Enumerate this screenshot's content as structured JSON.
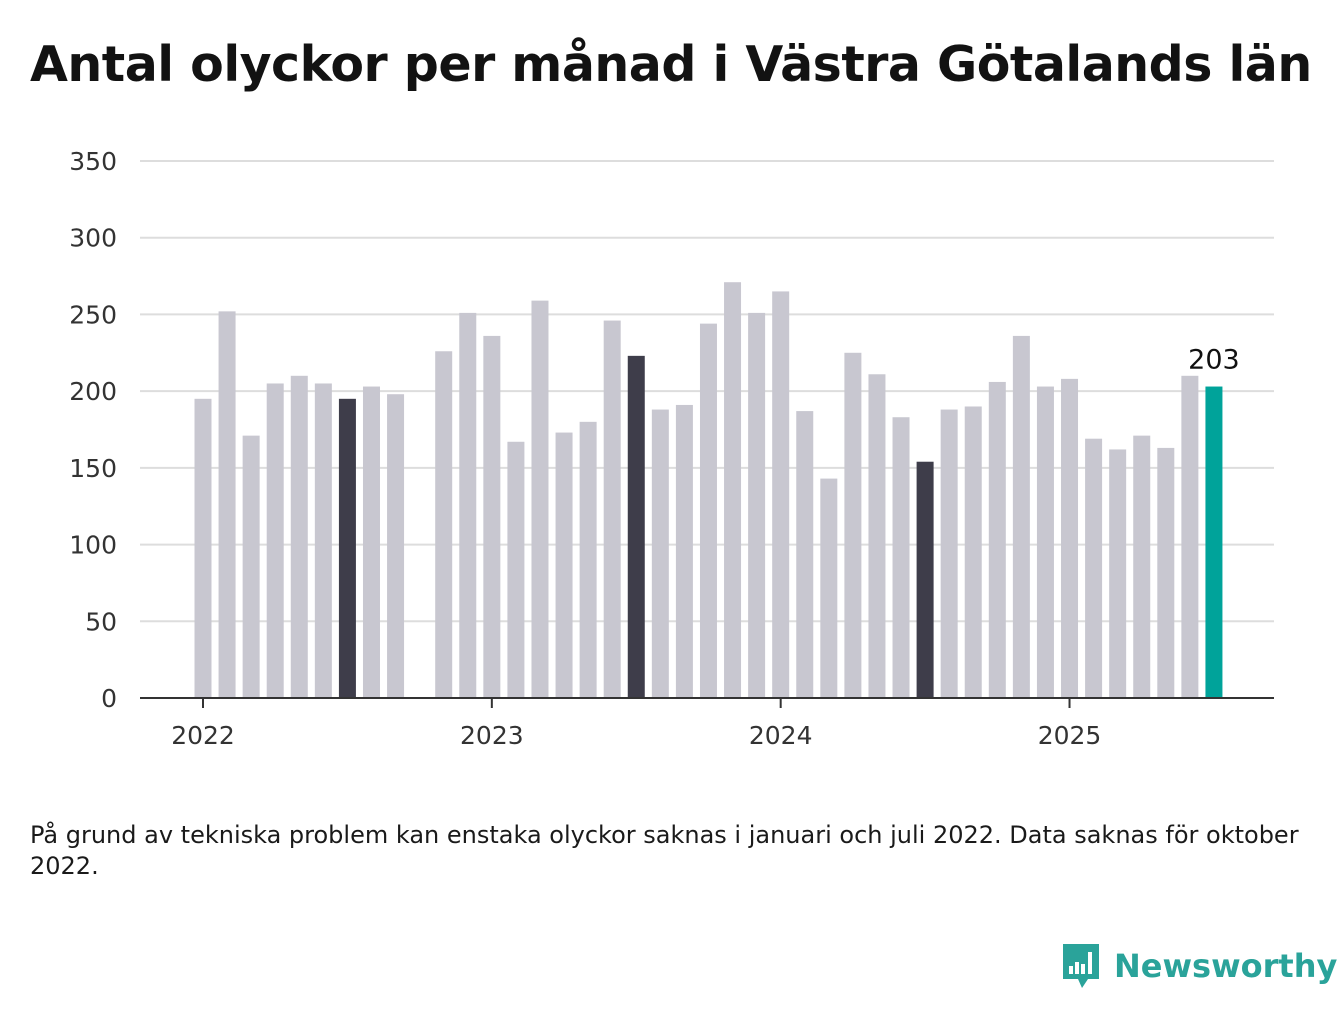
{
  "title": "Antal olyckor per månad i Västra Götalands län",
  "footnote": "På grund av tekniska problem kan enstaka olyckor saknas i januari och juli 2022. Data saknas för oktober 2022.",
  "brand": {
    "name": "Newsworthy",
    "icon": "newsworthy-logo-icon",
    "color": "#2aa39a"
  },
  "colors": {
    "bar": "#c8c7d0",
    "highlight": "#3e3d4a",
    "latest": "#00a39a",
    "grid": "#dddddd",
    "axis": "#333333"
  },
  "chart_data": {
    "type": "bar",
    "title": "Antal olyckor per månad i Västra Götalands län",
    "xlabel": "",
    "ylabel": "",
    "ylim": [
      0,
      350
    ],
    "yticks": [
      0,
      50,
      100,
      150,
      200,
      250,
      300,
      350
    ],
    "xticks": [
      "2022",
      "2023",
      "2024",
      "2025"
    ],
    "grid": true,
    "latest_label": "203",
    "months": [
      "2022-01",
      "2022-02",
      "2022-03",
      "2022-04",
      "2022-05",
      "2022-06",
      "2022-07",
      "2022-08",
      "2022-09",
      "2022-10",
      "2022-11",
      "2022-12",
      "2023-01",
      "2023-02",
      "2023-03",
      "2023-04",
      "2023-05",
      "2023-06",
      "2023-07",
      "2023-08",
      "2023-09",
      "2023-10",
      "2023-11",
      "2023-12",
      "2024-01",
      "2024-02",
      "2024-03",
      "2024-04",
      "2024-05",
      "2024-06",
      "2024-07",
      "2024-08",
      "2024-09",
      "2024-10",
      "2024-11",
      "2024-12",
      "2025-01",
      "2025-02",
      "2025-03",
      "2025-04",
      "2025-05",
      "2025-06",
      "2025-07"
    ],
    "values": [
      195,
      252,
      171,
      205,
      210,
      205,
      195,
      203,
      198,
      null,
      226,
      251,
      236,
      167,
      259,
      173,
      180,
      246,
      223,
      188,
      191,
      244,
      271,
      251,
      265,
      187,
      143,
      225,
      211,
      183,
      154,
      188,
      190,
      206,
      236,
      203,
      208,
      169,
      162,
      171,
      163,
      210,
      203
    ],
    "highlight_months": [
      "2022-07",
      "2023-07",
      "2024-07"
    ],
    "latest_month": "2025-07"
  }
}
